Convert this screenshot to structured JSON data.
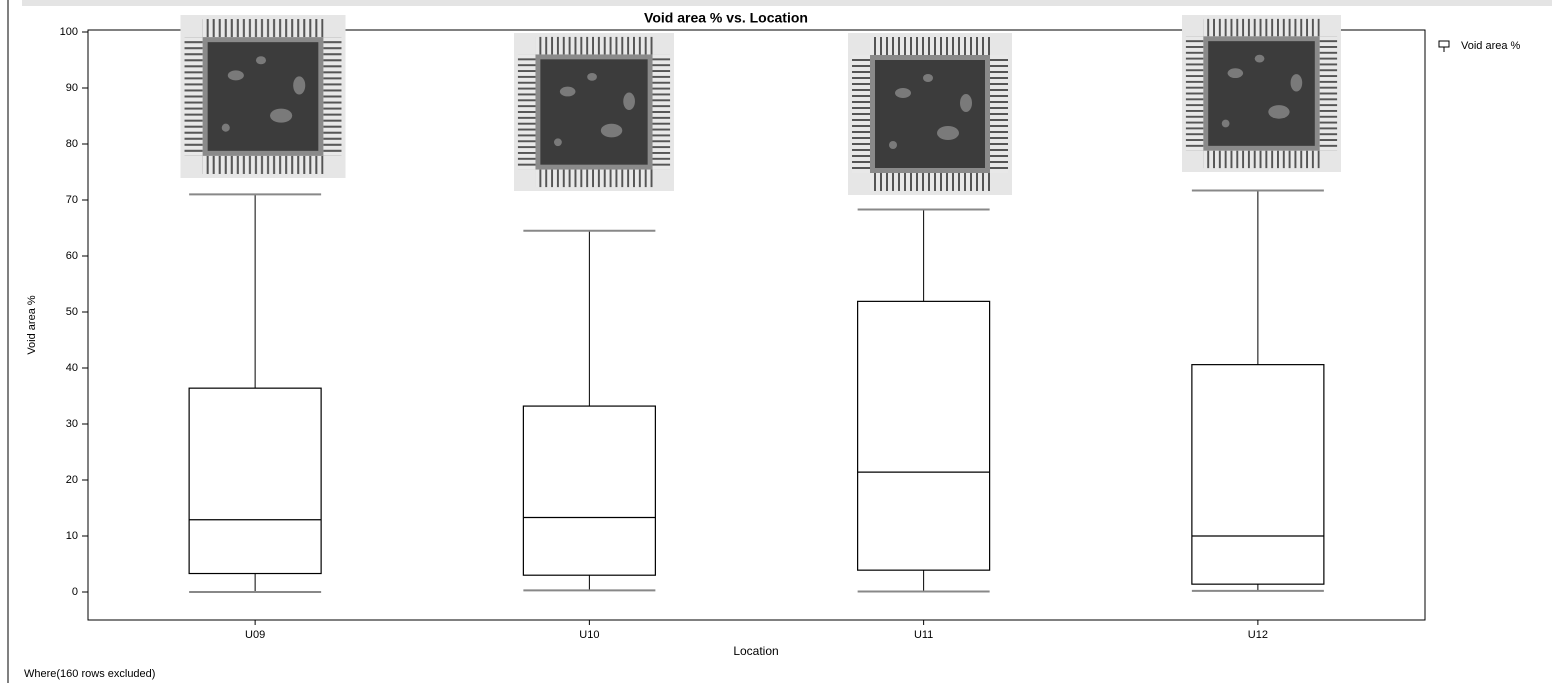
{
  "chart_data": {
    "type": "box",
    "title": "Void area % vs. Location",
    "x_label": "Location",
    "y_label": "Void area %",
    "categories": [
      "U09",
      "U10",
      "U11",
      "U12"
    ],
    "series": [
      {
        "name": "Void area %",
        "color": "#000000",
        "min": [
          0,
          0.3,
          0.1,
          0.2
        ],
        "q1": [
          3.3,
          3,
          3.9,
          1.4
        ],
        "median": [
          12.9,
          13.3,
          21.4,
          10
        ],
        "q3": [
          36.4,
          33.2,
          51.9,
          40.6
        ],
        "max": [
          71,
          64.5,
          68.3,
          71.7
        ]
      }
    ],
    "ylim": [
      -5,
      100
    ],
    "yticks": [
      0,
      10,
      20,
      30,
      40,
      50,
      60,
      70,
      80,
      90,
      100
    ],
    "legend": "right",
    "footnote": "Where(160 rows excluded)"
  }
}
